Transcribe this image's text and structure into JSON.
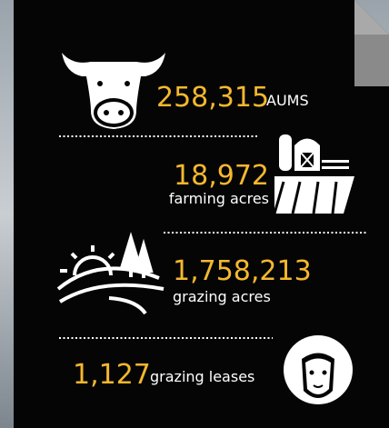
{
  "items": [
    {
      "value": "258,315",
      "unit": "AUMS"
    },
    {
      "value": "18,972",
      "unit": "farming acres"
    },
    {
      "value": "1,758,213",
      "unit": "grazing acres"
    },
    {
      "value": "1,127",
      "unit": "grazing leases"
    }
  ]
}
